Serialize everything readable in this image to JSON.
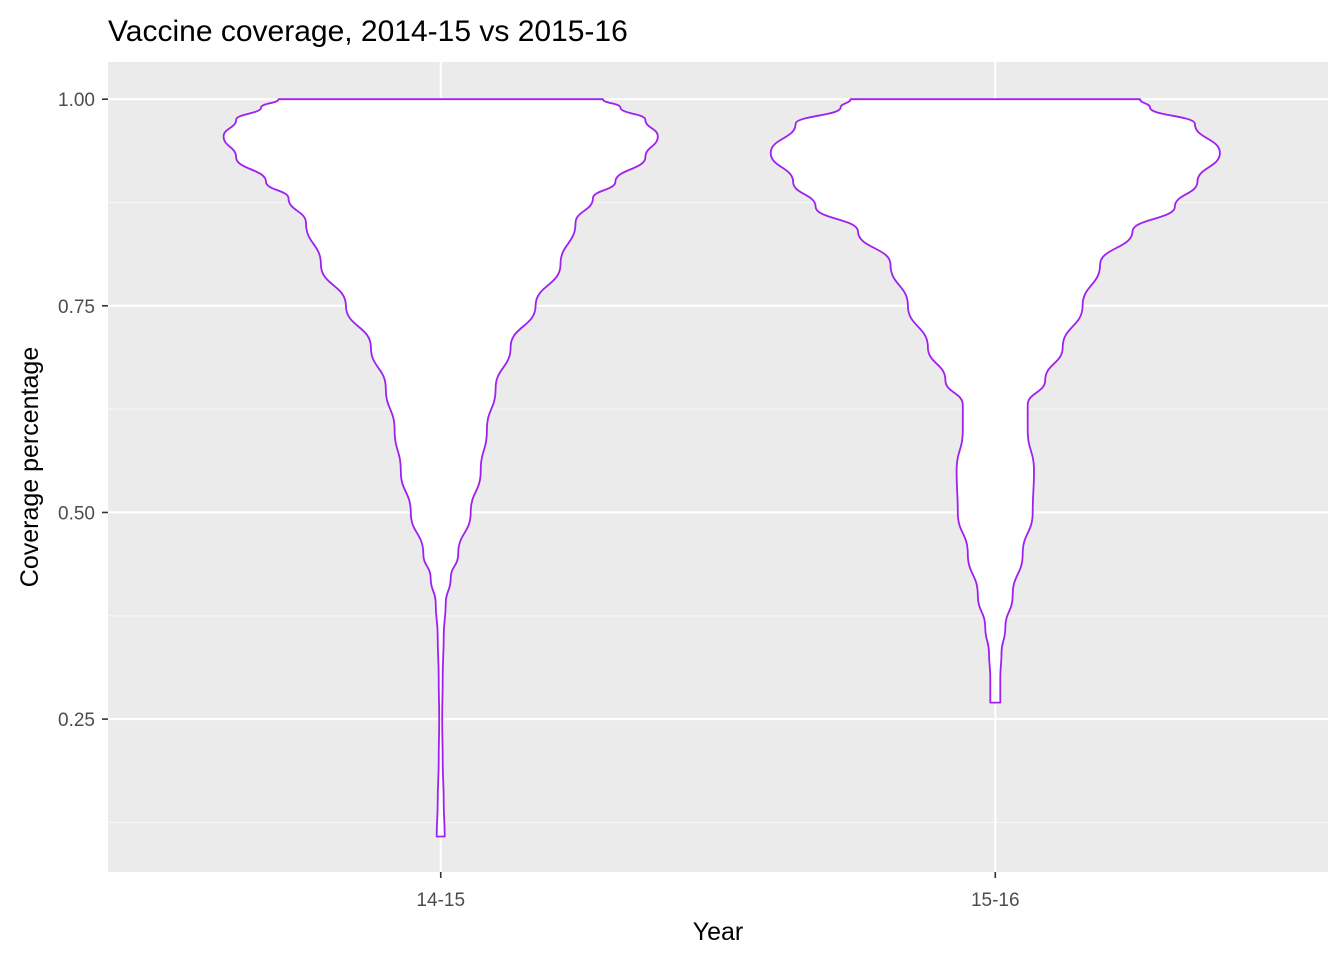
{
  "colors": {
    "panel_background": "#EBEBEB",
    "grid_major": "#FFFFFF",
    "grid_minor": "#F7F7F7",
    "violin_outline": "#A020F0",
    "violin_fill": "#FFFFFF",
    "tick_text": "#4D4D4D",
    "tick_mark": "#333333"
  },
  "chart_data": {
    "type": "violin",
    "title": "Vaccine coverage, 2014-15 vs 2015-16",
    "xlabel": "Year",
    "ylabel": "Coverage percentage",
    "categories": [
      "14-15",
      "15-16"
    ],
    "ylim": [
      0.065,
      1.045
    ],
    "y_ticks": [
      0.25,
      0.5,
      0.75,
      1.0
    ],
    "y_tick_labels": [
      "0.25",
      "0.50",
      "0.75",
      "1.00"
    ],
    "grid": true,
    "legend": "none",
    "series": [
      {
        "category": "14-15",
        "range": [
          0.108,
          1.0
        ],
        "density_half_width": [
          [
            0.108,
            0.016
          ],
          [
            0.15,
            0.012
          ],
          [
            0.2,
            0.008
          ],
          [
            0.25,
            0.006
          ],
          [
            0.3,
            0.008
          ],
          [
            0.35,
            0.012
          ],
          [
            0.39,
            0.02
          ],
          [
            0.42,
            0.04
          ],
          [
            0.45,
            0.07
          ],
          [
            0.5,
            0.12
          ],
          [
            0.55,
            0.16
          ],
          [
            0.6,
            0.185
          ],
          [
            0.65,
            0.22
          ],
          [
            0.7,
            0.28
          ],
          [
            0.75,
            0.38
          ],
          [
            0.8,
            0.48
          ],
          [
            0.85,
            0.54
          ],
          [
            0.88,
            0.61
          ],
          [
            0.9,
            0.7
          ],
          [
            0.93,
            0.82
          ],
          [
            0.955,
            0.87
          ],
          [
            0.975,
            0.82
          ],
          [
            0.99,
            0.72
          ],
          [
            1.0,
            0.65
          ]
        ]
      },
      {
        "category": "15-16",
        "range": [
          0.27,
          1.0
        ],
        "density_half_width": [
          [
            0.27,
            0.02
          ],
          [
            0.3,
            0.02
          ],
          [
            0.33,
            0.025
          ],
          [
            0.36,
            0.04
          ],
          [
            0.4,
            0.07
          ],
          [
            0.45,
            0.11
          ],
          [
            0.5,
            0.15
          ],
          [
            0.55,
            0.155
          ],
          [
            0.6,
            0.13
          ],
          [
            0.63,
            0.13
          ],
          [
            0.66,
            0.2
          ],
          [
            0.7,
            0.27
          ],
          [
            0.75,
            0.35
          ],
          [
            0.8,
            0.42
          ],
          [
            0.84,
            0.55
          ],
          [
            0.87,
            0.72
          ],
          [
            0.9,
            0.81
          ],
          [
            0.935,
            0.9
          ],
          [
            0.97,
            0.8
          ],
          [
            0.99,
            0.62
          ],
          [
            1.0,
            0.58
          ]
        ]
      }
    ]
  }
}
